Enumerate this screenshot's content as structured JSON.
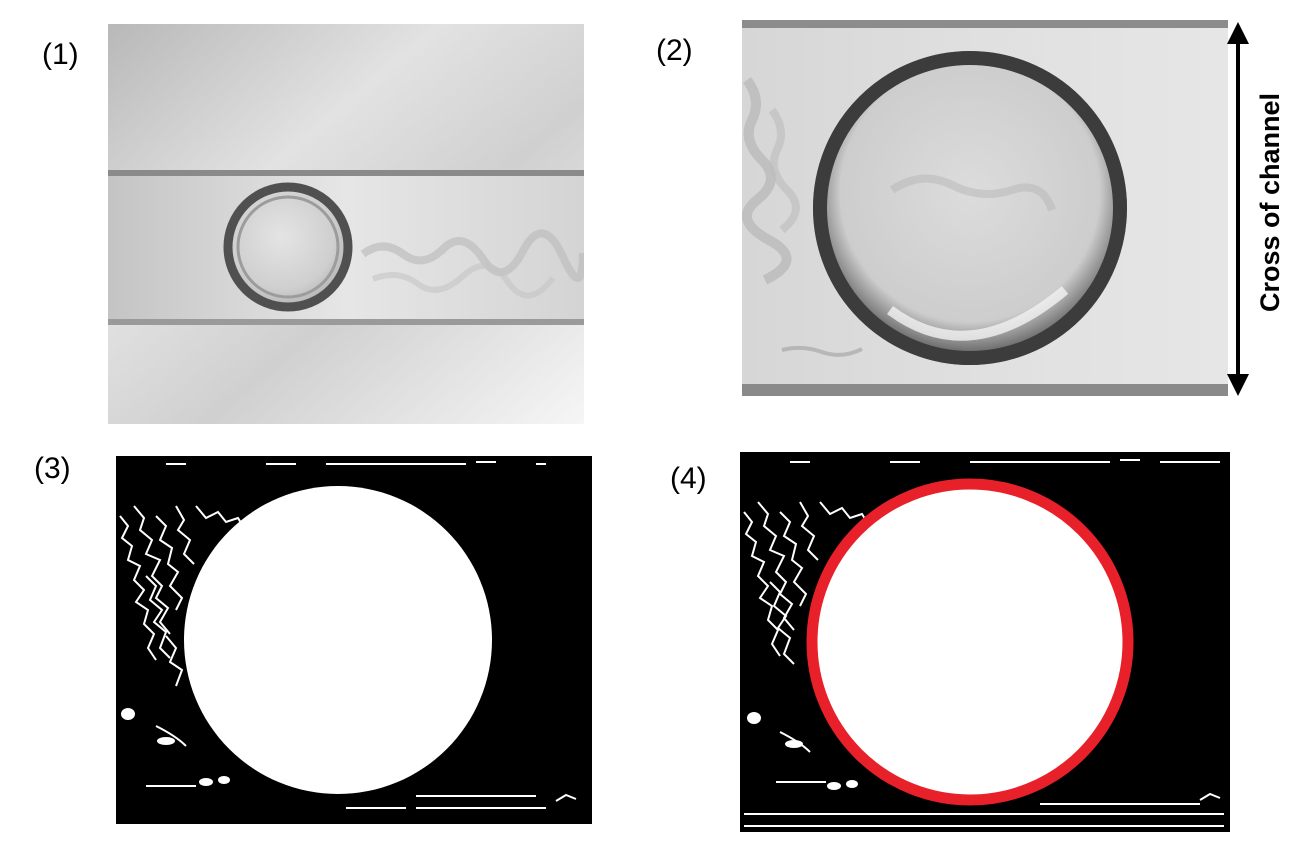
{
  "panels": [
    {
      "label": "(1)"
    },
    {
      "label": "(2)",
      "annotation": "Cross of channel"
    },
    {
      "label": "(3)"
    },
    {
      "label": "(4)"
    }
  ],
  "colors": {
    "background": "#ffffff",
    "edge_map_background": "#000000",
    "edge_lines": "#ffffff",
    "fitted_circle": "#e8202a"
  }
}
